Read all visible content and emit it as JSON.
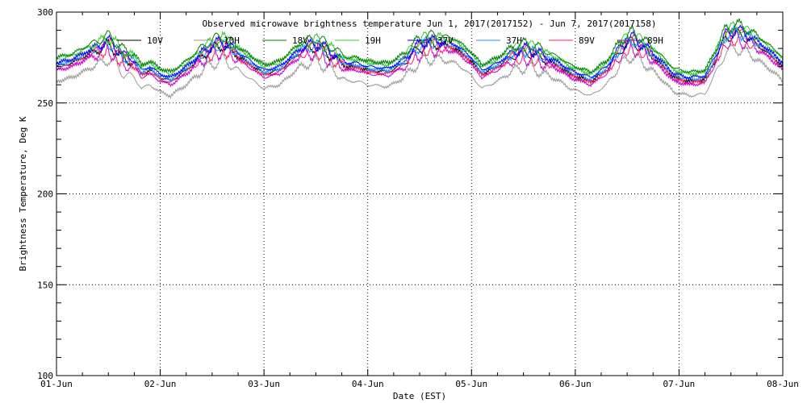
{
  "chart_data": {
    "type": "line",
    "title": "Observed microwave brightness temperature Jun  1, 2017(2017152) - Jun  7, 2017(2017158)",
    "xlabel": "Date (EST)",
    "ylabel": "Brightness Temperature, Deg K",
    "xlim": [
      0,
      7
    ],
    "ylim": [
      100,
      300
    ],
    "x_ticks": [
      {
        "value": 0,
        "label": "01-Jun"
      },
      {
        "value": 1,
        "label": "02-Jun"
      },
      {
        "value": 2,
        "label": "03-Jun"
      },
      {
        "value": 3,
        "label": "04-Jun"
      },
      {
        "value": 4,
        "label": "05-Jun"
      },
      {
        "value": 5,
        "label": "06-Jun"
      },
      {
        "value": 6,
        "label": "07-Jun"
      },
      {
        "value": 7,
        "label": "08-Jun"
      }
    ],
    "y_ticks": [
      100,
      150,
      200,
      250,
      300
    ],
    "grid": true,
    "legend_position": "top",
    "series": [
      {
        "name": "10V",
        "color": "#000000",
        "offset": -2
      },
      {
        "name": "10H",
        "color": "#9a9a9a",
        "offset": -7
      },
      {
        "name": "18V",
        "color": "#008000",
        "offset": 3
      },
      {
        "name": "19H",
        "color": "#33cc33",
        "offset": 2
      },
      {
        "name": "37V",
        "color": "#0000ff",
        "offset": 0
      },
      {
        "name": "37H",
        "color": "#1e90ff",
        "offset": -1
      },
      {
        "name": "89V",
        "color": "#ff2060",
        "offset": -3
      },
      {
        "name": "89H",
        "color": "#cc00cc",
        "offset": -4
      }
    ],
    "base_curve": {
      "x": [
        0,
        0.15,
        0.35,
        0.5,
        0.55,
        0.65,
        0.75,
        0.82,
        0.9,
        1.0,
        1.1,
        1.25,
        1.45,
        1.6,
        1.75,
        1.9,
        2.0,
        2.15,
        2.35,
        2.5,
        2.65,
        2.8,
        2.9,
        3.0,
        3.2,
        3.35,
        3.45,
        3.55,
        3.7,
        3.85,
        4.0,
        4.1,
        4.25,
        4.4,
        4.55,
        4.7,
        4.85,
        4.95,
        5.05,
        5.15,
        5.3,
        5.45,
        5.55,
        5.7,
        5.85,
        5.95,
        6.1,
        6.25,
        6.35,
        6.45,
        6.55,
        6.65,
        6.8,
        6.95,
        7.0
      ],
      "y": [
        272,
        274,
        280,
        284,
        282,
        276,
        274,
        268,
        270,
        266,
        264,
        270,
        280,
        284,
        278,
        272,
        268,
        270,
        280,
        283,
        278,
        272,
        272,
        270,
        269,
        274,
        280,
        284,
        284,
        282,
        275,
        268,
        272,
        278,
        280,
        276,
        272,
        268,
        266,
        264,
        270,
        282,
        286,
        280,
        272,
        266,
        264,
        265,
        276,
        288,
        290,
        288,
        282,
        275,
        272
      ]
    }
  }
}
